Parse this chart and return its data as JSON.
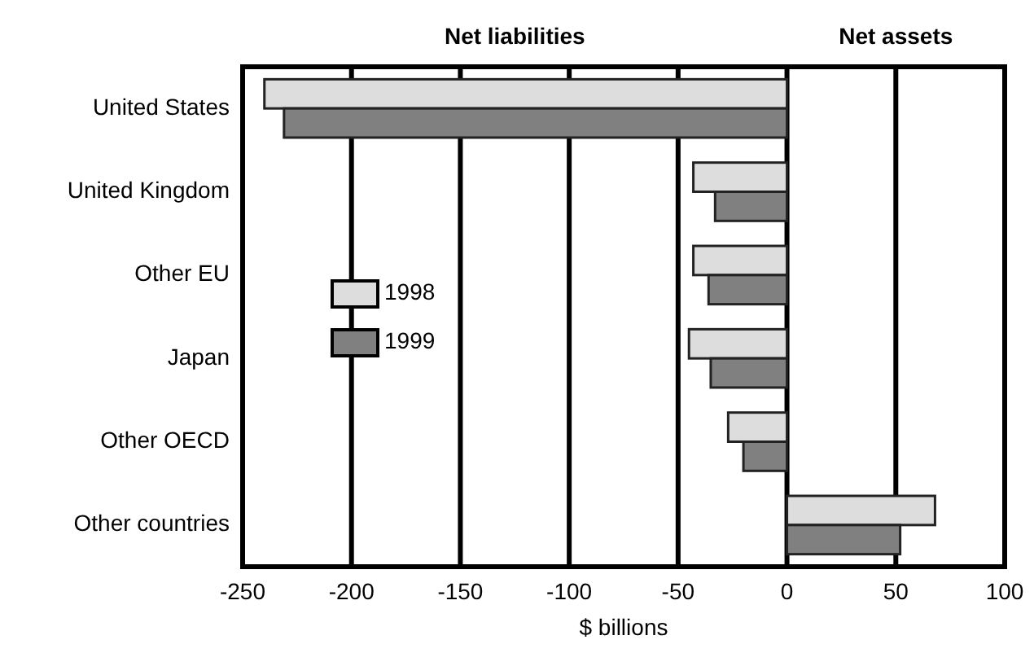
{
  "chart_data": {
    "type": "bar",
    "orientation": "horizontal",
    "xlabel": "$ billions",
    "annotations": [
      "Net liabilities",
      "Net assets"
    ],
    "categories": [
      "United States",
      "United Kingdom",
      "Other EU",
      "Japan",
      "Other OECD",
      "Other countries"
    ],
    "series": [
      {
        "name": "1998",
        "color": "#dddddd",
        "values": [
          -240,
          -43,
          -43,
          -45,
          -27,
          68
        ]
      },
      {
        "name": "1999",
        "color": "#808080",
        "values": [
          -231,
          -33,
          -36,
          -35,
          -20,
          52
        ]
      }
    ],
    "xlim": [
      -250,
      100
    ],
    "xticks": [
      -250,
      -200,
      -150,
      -100,
      -50,
      0,
      50,
      100
    ],
    "grid": "x",
    "legend": "left"
  }
}
